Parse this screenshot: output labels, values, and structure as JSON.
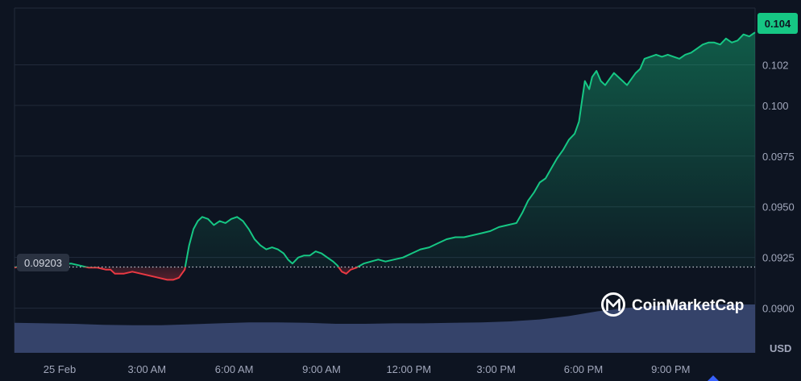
{
  "chart_data": {
    "type": "area",
    "currency_label": "USD",
    "current_price_label": "0.104",
    "baseline_label": "0.09203",
    "baseline": 0.09203,
    "ylim": [
      0.0878,
      0.1048
    ],
    "y_ticks": [
      {
        "value": 0.09,
        "label": "0.0900"
      },
      {
        "value": 0.0925,
        "label": "0.0925"
      },
      {
        "value": 0.095,
        "label": "0.0950"
      },
      {
        "value": 0.0975,
        "label": "0.0975"
      },
      {
        "value": 0.1,
        "label": "0.100"
      },
      {
        "value": 0.102,
        "label": "0.102"
      }
    ],
    "xlim": [
      -1.55,
      23.9
    ],
    "x_ticks": [
      {
        "value": 0,
        "label": "25 Feb"
      },
      {
        "value": 3,
        "label": "3:00 AM"
      },
      {
        "value": 6,
        "label": "6:00 AM"
      },
      {
        "value": 9,
        "label": "9:00 AM"
      },
      {
        "value": 12,
        "label": "12:00 PM"
      },
      {
        "value": 15,
        "label": "3:00 PM"
      },
      {
        "value": 18,
        "label": "6:00 PM"
      },
      {
        "value": 21,
        "label": "9:00 PM"
      }
    ],
    "series": [
      {
        "values": [
          [
            -1.55,
            0.092
          ],
          [
            -1.3,
            0.0921
          ],
          [
            -1.0,
            0.0921
          ],
          [
            -0.7,
            0.092
          ],
          [
            -0.45,
            0.092
          ],
          [
            -0.2,
            0.0921
          ],
          [
            0.1,
            0.0922
          ],
          [
            0.4,
            0.0922
          ],
          [
            0.7,
            0.0921
          ],
          [
            1.0,
            0.092
          ],
          [
            1.3,
            0.092
          ],
          [
            1.6,
            0.0919
          ],
          [
            1.75,
            0.0919
          ],
          [
            1.9,
            0.0917
          ],
          [
            2.2,
            0.0917
          ],
          [
            2.5,
            0.0918
          ],
          [
            2.8,
            0.0917
          ],
          [
            3.1,
            0.0916
          ],
          [
            3.4,
            0.0915
          ],
          [
            3.7,
            0.0914
          ],
          [
            3.9,
            0.0914
          ],
          [
            4.1,
            0.0915
          ],
          [
            4.3,
            0.0919
          ],
          [
            4.45,
            0.0931
          ],
          [
            4.6,
            0.0939
          ],
          [
            4.75,
            0.0943
          ],
          [
            4.9,
            0.0945
          ],
          [
            5.1,
            0.0944
          ],
          [
            5.3,
            0.0941
          ],
          [
            5.5,
            0.0943
          ],
          [
            5.7,
            0.0942
          ],
          [
            5.9,
            0.0944
          ],
          [
            6.1,
            0.0945
          ],
          [
            6.3,
            0.0943
          ],
          [
            6.5,
            0.0939
          ],
          [
            6.7,
            0.0934
          ],
          [
            6.9,
            0.0931
          ],
          [
            7.1,
            0.0929
          ],
          [
            7.3,
            0.093
          ],
          [
            7.5,
            0.0929
          ],
          [
            7.7,
            0.0927
          ],
          [
            7.85,
            0.0924
          ],
          [
            8.0,
            0.0922
          ],
          [
            8.2,
            0.0925
          ],
          [
            8.4,
            0.0926
          ],
          [
            8.6,
            0.0926
          ],
          [
            8.8,
            0.0928
          ],
          [
            9.0,
            0.0927
          ],
          [
            9.2,
            0.0925
          ],
          [
            9.4,
            0.0923
          ],
          [
            9.55,
            0.0921
          ],
          [
            9.7,
            0.0918
          ],
          [
            9.85,
            0.0917
          ],
          [
            10.0,
            0.0919
          ],
          [
            10.2,
            0.092
          ],
          [
            10.45,
            0.0922
          ],
          [
            10.7,
            0.0923
          ],
          [
            10.95,
            0.0924
          ],
          [
            11.2,
            0.0923
          ],
          [
            11.5,
            0.0924
          ],
          [
            11.8,
            0.0925
          ],
          [
            12.1,
            0.0927
          ],
          [
            12.4,
            0.0929
          ],
          [
            12.7,
            0.093
          ],
          [
            13.0,
            0.0932
          ],
          [
            13.3,
            0.0934
          ],
          [
            13.6,
            0.0935
          ],
          [
            13.9,
            0.0935
          ],
          [
            14.2,
            0.0936
          ],
          [
            14.5,
            0.0937
          ],
          [
            14.8,
            0.0938
          ],
          [
            15.1,
            0.094
          ],
          [
            15.4,
            0.0941
          ],
          [
            15.7,
            0.0942
          ],
          [
            15.9,
            0.0947
          ],
          [
            16.1,
            0.0953
          ],
          [
            16.3,
            0.0957
          ],
          [
            16.5,
            0.0962
          ],
          [
            16.7,
            0.0964
          ],
          [
            16.9,
            0.0969
          ],
          [
            17.1,
            0.0974
          ],
          [
            17.3,
            0.0978
          ],
          [
            17.5,
            0.0983
          ],
          [
            17.7,
            0.0986
          ],
          [
            17.85,
            0.0992
          ],
          [
            17.95,
            0.1002
          ],
          [
            18.05,
            0.1012
          ],
          [
            18.2,
            0.1008
          ],
          [
            18.3,
            0.1014
          ],
          [
            18.45,
            0.1017
          ],
          [
            18.6,
            0.1012
          ],
          [
            18.75,
            0.101
          ],
          [
            18.9,
            0.1013
          ],
          [
            19.05,
            0.1016
          ],
          [
            19.2,
            0.1014
          ],
          [
            19.35,
            0.1012
          ],
          [
            19.5,
            0.101
          ],
          [
            19.65,
            0.1013
          ],
          [
            19.8,
            0.1016
          ],
          [
            19.95,
            0.1018
          ],
          [
            20.1,
            0.1023
          ],
          [
            20.3,
            0.1024
          ],
          [
            20.5,
            0.1025
          ],
          [
            20.7,
            0.1024
          ],
          [
            20.9,
            0.1025
          ],
          [
            21.1,
            0.1024
          ],
          [
            21.3,
            0.1023
          ],
          [
            21.5,
            0.1025
          ],
          [
            21.7,
            0.1026
          ],
          [
            21.9,
            0.1028
          ],
          [
            22.1,
            0.103
          ],
          [
            22.3,
            0.1031
          ],
          [
            22.5,
            0.1031
          ],
          [
            22.7,
            0.103
          ],
          [
            22.9,
            0.1033
          ],
          [
            23.1,
            0.1031
          ],
          [
            23.3,
            0.1032
          ],
          [
            23.5,
            0.1035
          ],
          [
            23.7,
            0.1034
          ],
          [
            23.9,
            0.1036
          ]
        ]
      }
    ],
    "volume": {
      "max": 1.0,
      "values": [
        [
          -1.55,
          0.62
        ],
        [
          -0.5,
          0.61
        ],
        [
          0.5,
          0.6
        ],
        [
          1.5,
          0.58
        ],
        [
          2.5,
          0.57
        ],
        [
          3.5,
          0.57
        ],
        [
          4.5,
          0.59
        ],
        [
          5.5,
          0.61
        ],
        [
          6.5,
          0.63
        ],
        [
          7.5,
          0.63
        ],
        [
          8.5,
          0.62
        ],
        [
          9.5,
          0.6
        ],
        [
          10.5,
          0.6
        ],
        [
          11.5,
          0.61
        ],
        [
          12.5,
          0.61
        ],
        [
          13.5,
          0.62
        ],
        [
          14.5,
          0.63
        ],
        [
          15.5,
          0.65
        ],
        [
          16.5,
          0.69
        ],
        [
          17.5,
          0.76
        ],
        [
          18.5,
          0.86
        ],
        [
          19.5,
          0.93
        ],
        [
          20.5,
          0.97
        ],
        [
          21.5,
          1.0
        ],
        [
          22.5,
          1.0
        ],
        [
          23.5,
          1.0
        ],
        [
          23.9,
          1.0
        ]
      ]
    },
    "grid": true,
    "colors": {
      "background": "#0d1421",
      "grid": "#222b3b",
      "up": "#16c784",
      "down": "#ea3943",
      "volume": "#3d4b77",
      "tick_text": "#a1a7bb",
      "baseline_badge_bg": "#2a3241",
      "current_badge_bg": "#16c784"
    }
  },
  "watermark": {
    "brand": "CoinMarketCap",
    "icon": "coinmarketcap-logo-icon"
  }
}
